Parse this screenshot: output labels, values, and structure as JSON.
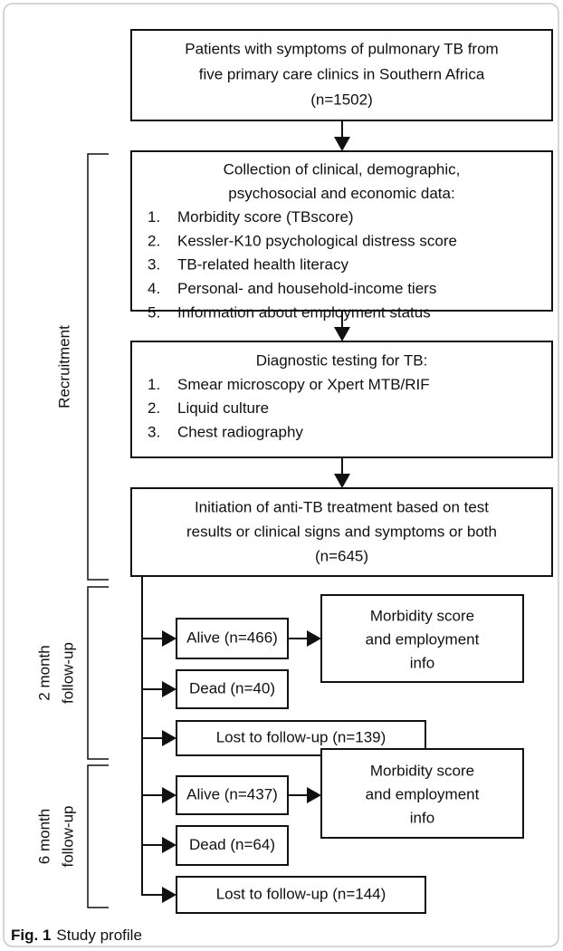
{
  "nodes": [
    {
      "lines": [
        "Patients with symptoms of pulmonary TB from",
        "five primary care clinics in Southern Africa",
        "(n=1502)"
      ]
    },
    {
      "lines": [
        "Collection of clinical, demographic,",
        "psychosocial and economic data:"
      ],
      "items": [
        {
          "num": "1.",
          "text": "Morbidity score (TBscore)"
        },
        {
          "num": "2.",
          "text": "Kessler-K10 psychological distress score"
        },
        {
          "num": "3.",
          "text": "TB-related health literacy"
        },
        {
          "num": "4.",
          "text": "Personal- and household-income tiers"
        },
        {
          "num": "5.",
          "text": "Information about employment status"
        }
      ]
    },
    {
      "lines": [
        "Diagnostic testing for TB:"
      ],
      "items": [
        {
          "num": "1.",
          "text": "Smear microscopy or Xpert MTB/RIF"
        },
        {
          "num": "2.",
          "text": "Liquid culture"
        },
        {
          "num": "3.",
          "text": "Chest radiography"
        }
      ]
    },
    {
      "lines": [
        "Initiation of anti-TB treatment based on test",
        "results or clinical signs and symptoms or both",
        "(n=645)"
      ]
    },
    {
      "lines": [
        "Alive (n=466)"
      ]
    },
    {
      "lines": [
        "Dead (n=40)"
      ]
    },
    {
      "lines": [
        "Lost to follow-up (n=139)"
      ]
    },
    {
      "lines": [
        "Morbidity score",
        "and employment",
        "info"
      ]
    },
    {
      "lines": [
        "Alive (n=437)"
      ]
    },
    {
      "lines": [
        "Dead (n=64)"
      ]
    },
    {
      "lines": [
        "Lost to follow-up (n=144)"
      ]
    },
    {
      "lines": [
        "Morbidity score",
        "and employment",
        "info"
      ]
    }
  ],
  "phases": [
    {
      "lines": [
        "Recruitment"
      ]
    },
    {
      "lines": [
        "2 month",
        "follow-up"
      ]
    },
    {
      "lines": [
        "6 month",
        "follow-up"
      ]
    }
  ],
  "caption": {
    "label": "Fig. 1",
    "text": "Study profile"
  }
}
